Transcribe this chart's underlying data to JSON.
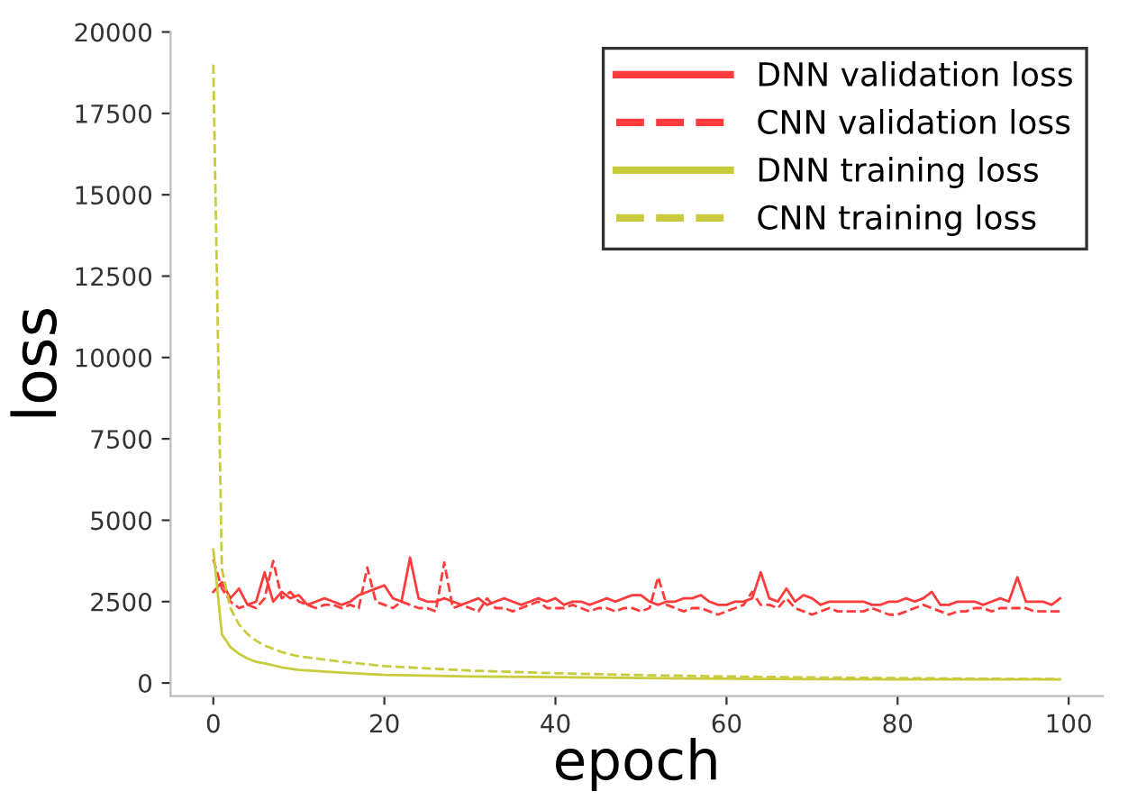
{
  "chart_data": {
    "type": "line",
    "xlabel": "epoch",
    "ylabel": "loss",
    "xlim": [
      -5,
      104
    ],
    "ylim": [
      -400,
      20000
    ],
    "xticks": [
      0,
      20,
      40,
      60,
      80,
      100
    ],
    "yticks": [
      0,
      2500,
      5000,
      7500,
      10000,
      12500,
      15000,
      17500,
      20000
    ],
    "grid": false,
    "legend": "top right",
    "marker": "none",
    "x": [
      0,
      1,
      2,
      3,
      4,
      5,
      6,
      7,
      8,
      9,
      10,
      11,
      12,
      13,
      14,
      15,
      16,
      17,
      18,
      19,
      20,
      21,
      22,
      23,
      24,
      25,
      26,
      27,
      28,
      29,
      30,
      31,
      32,
      33,
      34,
      35,
      36,
      37,
      38,
      39,
      40,
      41,
      42,
      43,
      44,
      45,
      46,
      47,
      48,
      49,
      50,
      51,
      52,
      53,
      54,
      55,
      56,
      57,
      58,
      59,
      60,
      61,
      62,
      63,
      64,
      65,
      66,
      67,
      68,
      69,
      70,
      71,
      72,
      73,
      74,
      75,
      76,
      77,
      78,
      79,
      80,
      81,
      82,
      83,
      84,
      85,
      86,
      87,
      88,
      89,
      90,
      91,
      92,
      93,
      94,
      95,
      96,
      97,
      98,
      99
    ],
    "series": [
      {
        "name": "DNN validation loss",
        "color": "#ff3b3b",
        "line_style": "solid",
        "values": [
          2800,
          3100,
          2600,
          2900,
          2400,
          2500,
          3400,
          2500,
          2800,
          2600,
          2700,
          2400,
          2500,
          2600,
          2500,
          2400,
          2500,
          2700,
          2800,
          2900,
          3000,
          2600,
          2500,
          3850,
          2600,
          2500,
          2500,
          2600,
          2500,
          2400,
          2500,
          2600,
          2400,
          2500,
          2600,
          2500,
          2400,
          2500,
          2600,
          2500,
          2600,
          2400,
          2500,
          2500,
          2400,
          2500,
          2600,
          2500,
          2600,
          2700,
          2700,
          2500,
          2400,
          2500,
          2500,
          2600,
          2600,
          2700,
          2500,
          2400,
          2400,
          2500,
          2500,
          2600,
          3400,
          2600,
          2500,
          2900,
          2500,
          2700,
          2600,
          2400,
          2500,
          2500,
          2500,
          2500,
          2500,
          2400,
          2400,
          2500,
          2500,
          2600,
          2500,
          2600,
          2800,
          2400,
          2400,
          2500,
          2500,
          2500,
          2400,
          2500,
          2600,
          2500,
          3250,
          2500,
          2500,
          2500,
          2400,
          2600
        ]
      },
      {
        "name": "CNN validation loss",
        "color": "#ff3b3b",
        "line_style": "dashed",
        "values": [
          3800,
          2900,
          2500,
          2300,
          2400,
          2300,
          2600,
          3750,
          2600,
          2800,
          2500,
          2400,
          2300,
          2400,
          2400,
          2300,
          2400,
          2300,
          3550,
          2500,
          2400,
          2300,
          2500,
          2400,
          2300,
          2300,
          2200,
          3700,
          2300,
          2400,
          2300,
          2200,
          2600,
          2300,
          2300,
          2200,
          2300,
          2400,
          2500,
          2300,
          2300,
          2300,
          2400,
          2300,
          2200,
          2300,
          2300,
          2200,
          2300,
          2300,
          2200,
          2300,
          3250,
          2400,
          2300,
          2200,
          2300,
          2300,
          2200,
          2100,
          2200,
          2300,
          2400,
          2800,
          2400,
          2400,
          2300,
          2600,
          2300,
          2200,
          2100,
          2200,
          2300,
          2200,
          2200,
          2200,
          2200,
          2300,
          2200,
          2100,
          2100,
          2200,
          2300,
          2400,
          2300,
          2200,
          2100,
          2200,
          2200,
          2300,
          2300,
          2200,
          2300,
          2300,
          2300,
          2300,
          2200,
          2200,
          2200,
          2200
        ]
      },
      {
        "name": "DNN training loss",
        "color": "#c8cc3c",
        "line_style": "solid",
        "x": [
          0,
          1,
          2,
          3,
          4,
          5,
          6,
          8,
          10,
          15,
          20,
          30,
          40,
          50,
          60,
          70,
          80,
          90,
          99
        ],
        "values": [
          4100,
          1500,
          1100,
          900,
          750,
          650,
          600,
          480,
          400,
          320,
          250,
          200,
          180,
          150,
          130,
          120,
          110,
          110,
          110
        ]
      },
      {
        "name": "CNN training loss",
        "color": "#c8cc3c",
        "line_style": "dashed",
        "x": [
          0,
          1,
          2,
          3,
          4,
          5,
          6,
          7,
          8,
          9,
          10,
          15,
          20,
          30,
          40,
          50,
          60,
          70,
          80,
          90,
          99
        ],
        "values": [
          19000,
          3500,
          2300,
          1800,
          1500,
          1300,
          1150,
          1050,
          950,
          880,
          820,
          650,
          520,
          380,
          300,
          240,
          200,
          170,
          150,
          130,
          120
        ]
      }
    ]
  }
}
